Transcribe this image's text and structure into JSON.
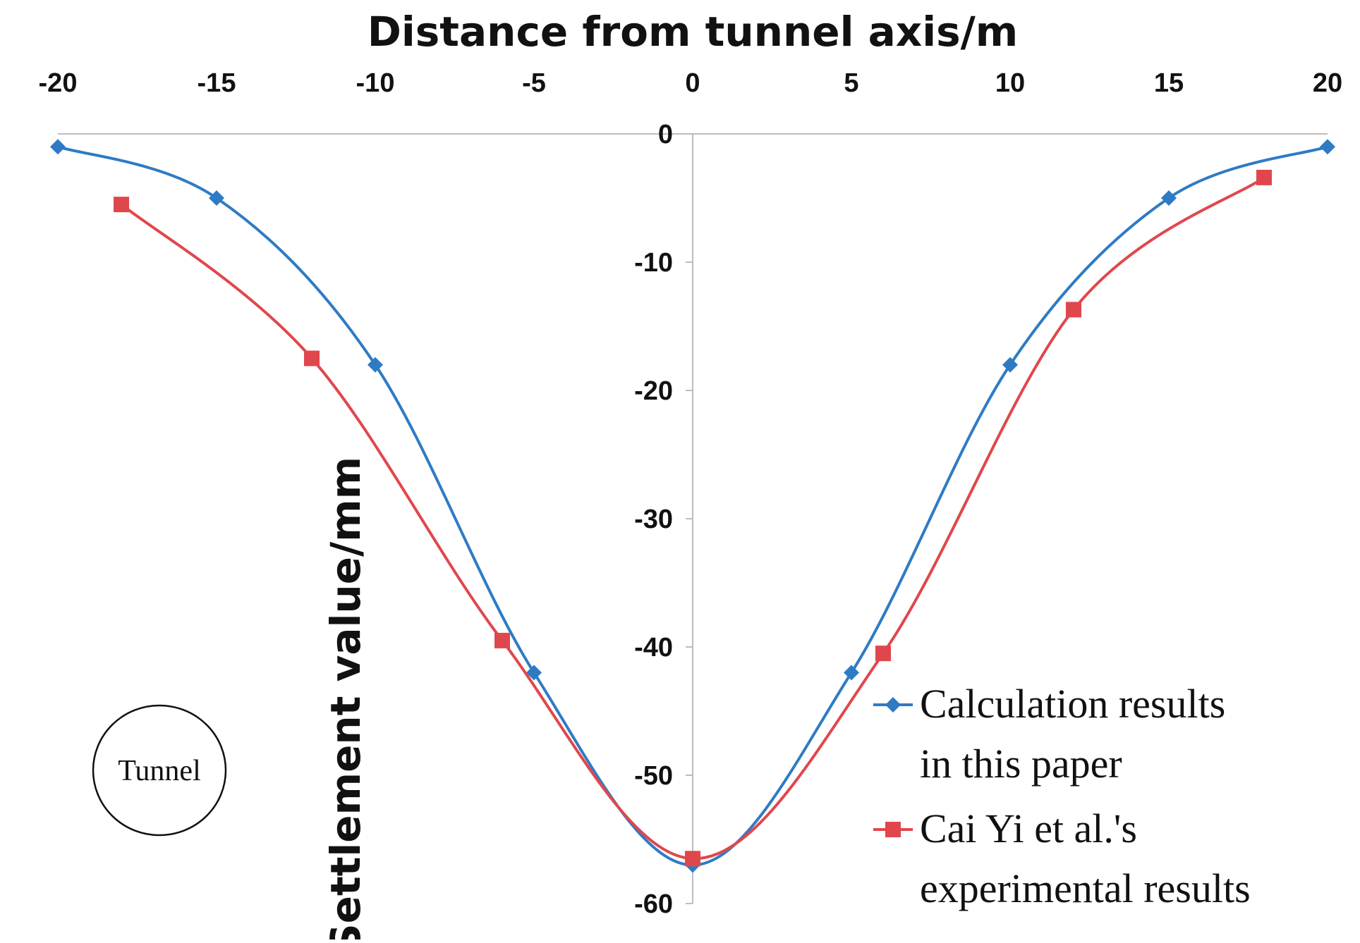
{
  "chart_data": {
    "type": "line",
    "title": "",
    "xlabel": "Distance from tunnel axis/m",
    "ylabel": "Settlement value/mm",
    "xlim": [
      -20,
      20
    ],
    "ylim": [
      -60,
      0
    ],
    "x_ticks": [
      -20,
      -15,
      -10,
      -5,
      0,
      5,
      10,
      15,
      20
    ],
    "y_ticks": [
      0,
      -10,
      -20,
      -30,
      -40,
      -50,
      -60
    ],
    "x_tick_labels": [
      "-20",
      "-15",
      "-10",
      "-5",
      "0",
      "5",
      "10",
      "15",
      "20"
    ],
    "y_tick_labels": [
      "0",
      "-10",
      "-20",
      "-30",
      "-40",
      "-50",
      "-60"
    ],
    "x_axis_position": "top",
    "y_axis_position": "center",
    "grid": false,
    "legend_position": "bottom-right",
    "series": [
      {
        "name": "Calculation results in this paper",
        "legend_lines": [
          "Calculation results",
          "in this paper"
        ],
        "color": "#2e7bc4",
        "marker": "diamond",
        "x": [
          -20,
          -15,
          -10,
          -5,
          0,
          5,
          10,
          15,
          20
        ],
        "y": [
          -1,
          -5,
          -18,
          -42,
          -57,
          -42,
          -18,
          -5,
          -1
        ]
      },
      {
        "name": "Cai Yi et al.'s experimental results",
        "legend_lines": [
          "Cai Yi et al.'s",
          "experimental results"
        ],
        "color": "#e0474c",
        "marker": "square",
        "x": [
          -18,
          -12,
          -6,
          0,
          6,
          12,
          18
        ],
        "y": [
          -5.5,
          -17.5,
          -39.5,
          -56.5,
          -40.5,
          -13.7,
          -3.4
        ]
      }
    ],
    "annotations": [
      {
        "text": "Tunnel",
        "shape": "circle",
        "placement": "bottom-left"
      }
    ]
  }
}
